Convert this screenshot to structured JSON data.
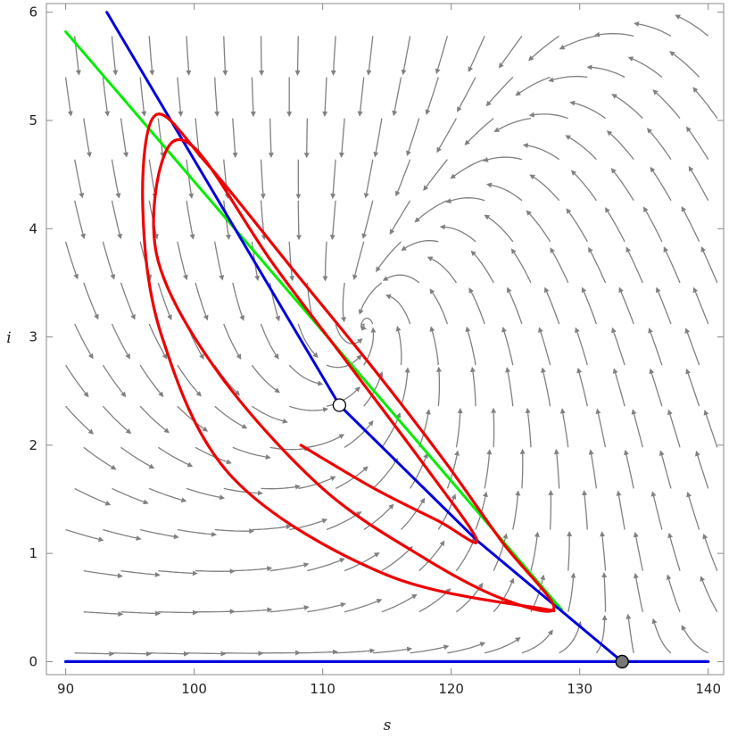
{
  "chart_data": {
    "type": "line",
    "title": "",
    "xlabel": "s",
    "ylabel": "i",
    "xlim": [
      88.5,
      141.2
    ],
    "ylim": [
      -0.12,
      6.08
    ],
    "x_ticks": [
      90,
      100,
      110,
      120,
      130,
      140
    ],
    "y_ticks": [
      0,
      1,
      2,
      3,
      4,
      5,
      6
    ],
    "grid": false,
    "legend": "none",
    "colors": {
      "green_line": "#00ee00",
      "blue_line": "#0000dd",
      "trajectory": "#ee0000",
      "stream": "#808080",
      "open_point_fill": "#ffffff",
      "filled_point_fill": "#777777",
      "frame": "#888888"
    },
    "series": [
      {
        "x": [
          90.0,
          128.6
        ],
        "y": [
          5.82,
          0.48
        ]
      },
      {
        "x": [
          93.2,
          111.3,
          122.0,
          133.3
        ],
        "y": [
          6.0,
          2.37,
          1.12,
          0.0
        ]
      },
      {
        "x": [
          90.0,
          140.0
        ],
        "y": [
          0.0,
          0.0
        ]
      },
      {
        "x": [
          128.0,
          115.0,
          103.0,
          97.5,
          96.0,
          97.0,
          101.0,
          107.5,
          114.0,
          119.5,
          124.0,
          128.0,
          124.0,
          118.0,
          110.0,
          102.0,
          97.2,
          97.5,
          100.0,
          106.0,
          112.0,
          118.0,
          122.0,
          119.0,
          114.0,
          108.3
        ],
        "y": [
          0.47,
          0.8,
          1.7,
          3.0,
          4.2,
          5.05,
          4.6,
          3.65,
          2.7,
          1.85,
          1.1,
          0.5,
          0.58,
          0.95,
          1.6,
          2.65,
          3.7,
          4.62,
          4.75,
          3.7,
          2.75,
          1.8,
          1.12,
          1.3,
          1.6,
          2.0
        ]
      }
    ],
    "equilibria": [
      {
        "s": 111.3,
        "i": 2.37,
        "style": "open"
      },
      {
        "s": 133.3,
        "i": 0.0,
        "style": "filled"
      }
    ]
  }
}
